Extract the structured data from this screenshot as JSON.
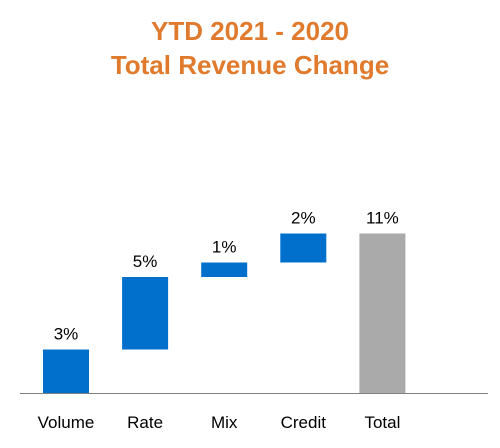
{
  "chart_data": {
    "type": "bar",
    "subtype": "waterfall",
    "title": [
      "YTD 2021 - 2020",
      "Total Revenue Change"
    ],
    "categories": [
      "Volume",
      "Rate",
      "Mix",
      "Credit",
      "Total"
    ],
    "values": [
      3,
      5,
      1,
      2,
      11
    ],
    "labels": [
      "3%",
      "5%",
      "1%",
      "2%",
      "11%"
    ],
    "is_total": [
      false,
      false,
      false,
      false,
      true
    ],
    "ylim": [
      0,
      12
    ],
    "grid": false,
    "legend": "none"
  },
  "colors": {
    "title": "#E07B2E",
    "increase": "#0070CC",
    "total": "#AAAAAA",
    "axis": "#808080",
    "text": "#000000"
  }
}
